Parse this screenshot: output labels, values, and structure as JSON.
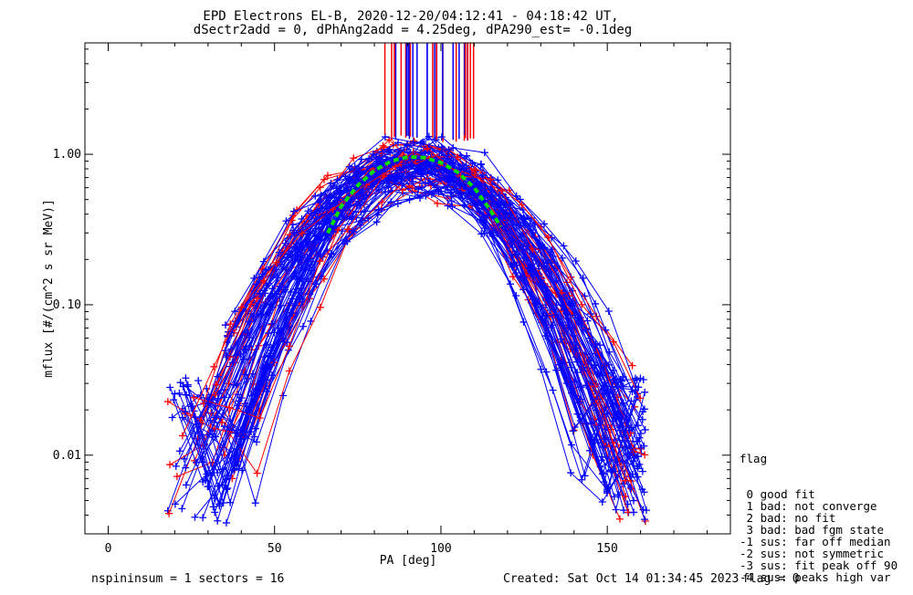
{
  "chart_data": {
    "type": "line",
    "title_line1": "EPD Electrons EL-B, 2020-12-20/04:12:41 - 04:18:42 UT,",
    "title_line2": "dSectr2add = 0, dPhAng2add = 4.25deg, dPA290_est=  -0.1deg",
    "xlabel": "PA [deg]",
    "ylabel": "mflux [#/(cm^2 s sr MeV)]",
    "xlim": [
      -7,
      187
    ],
    "ylim": [
      0.003,
      5.5
    ],
    "yscale": "log",
    "x_ticks": [
      "0",
      "50",
      "100",
      "150"
    ],
    "x_tick_values": [
      0,
      50,
      100,
      150
    ],
    "y_ticks": [
      "0.01",
      "0.10",
      "1.00"
    ],
    "y_tick_values": [
      0.01,
      0.1,
      1.0
    ],
    "fit_curve": {
      "color": "#00dd00",
      "style": "dashed",
      "x": [
        66,
        70,
        75,
        80,
        85,
        90,
        95,
        100,
        105,
        110,
        115,
        118
      ],
      "y": [
        0.3,
        0.45,
        0.62,
        0.78,
        0.9,
        0.96,
        0.95,
        0.88,
        0.76,
        0.6,
        0.42,
        0.33
      ]
    },
    "series_colors": {
      "red": "#ff0000",
      "blue": "#0000ff"
    },
    "vertical_lines_x_range": [
      81,
      110
    ],
    "note": ""
  },
  "legend": {
    "title": "flag",
    "items": [
      " 0 good fit",
      " 1 bad: not converge",
      " 2 bad: no fit",
      " 3 bad: bad fgm state",
      "-1 sus: far off median",
      "-2 sus: not symmetric",
      "-3 sus: fit peak off 90",
      "-4 sus: peaks high var"
    ]
  },
  "footer": {
    "left": "nspininsum =  1  sectors = 16",
    "created": "Created: Sat Oct 14 01:34:45 2023",
    "flag": "flag = 0"
  }
}
